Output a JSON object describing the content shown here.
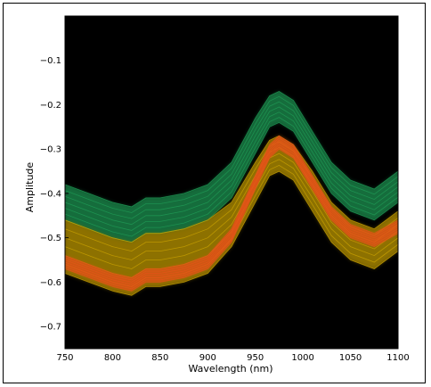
{
  "chart_data": {
    "type": "line",
    "title": "",
    "xlabel": "Wavelength (nm)",
    "ylabel": "Amplitude",
    "xlim": [
      750,
      1100
    ],
    "ylim": [
      -0.75,
      0.0
    ],
    "x_ticks": [
      750,
      800,
      850,
      900,
      950,
      1000,
      1050,
      1100
    ],
    "y_ticks": [
      -0.7,
      -0.6,
      -0.5,
      -0.4,
      -0.3,
      -0.2,
      -0.1
    ],
    "x_tick_labels": [
      "750",
      "800",
      "850",
      "900",
      "950",
      "1000",
      "1050",
      "1100"
    ],
    "y_tick_labels": [
      "−0.7",
      "−0.6",
      "−0.5",
      "−0.4",
      "−0.3",
      "−0.2",
      "−0.1"
    ],
    "grid": false,
    "background": "#000000",
    "series": [
      {
        "color": "#1f9a55",
        "x": [
          750,
          775,
          800,
          820,
          835,
          850,
          875,
          900,
          925,
          950,
          965,
          975,
          990,
          1010,
          1030,
          1050,
          1075,
          1100
        ],
        "y_upper": [
          -0.38,
          -0.4,
          -0.42,
          -0.43,
          -0.41,
          -0.41,
          -0.4,
          -0.38,
          -0.33,
          -0.23,
          -0.18,
          -0.17,
          -0.19,
          -0.26,
          -0.33,
          -0.37,
          -0.39,
          -0.35
        ],
        "y_lower": [
          -0.46,
          -0.48,
          -0.5,
          -0.51,
          -0.49,
          -0.49,
          -0.48,
          -0.46,
          -0.41,
          -0.31,
          -0.25,
          -0.24,
          -0.26,
          -0.33,
          -0.4,
          -0.44,
          -0.46,
          -0.42
        ]
      },
      {
        "color": "#c8a000",
        "x": [
          750,
          775,
          800,
          820,
          835,
          850,
          875,
          900,
          925,
          950,
          965,
          975,
          990,
          1010,
          1030,
          1050,
          1075,
          1100
        ],
        "y_upper": [
          -0.46,
          -0.48,
          -0.5,
          -0.51,
          -0.49,
          -0.49,
          -0.48,
          -0.46,
          -0.42,
          -0.33,
          -0.28,
          -0.27,
          -0.29,
          -0.35,
          -0.42,
          -0.46,
          -0.48,
          -0.44
        ],
        "y_lower": [
          -0.58,
          -0.6,
          -0.62,
          -0.63,
          -0.61,
          -0.61,
          -0.6,
          -0.58,
          -0.52,
          -0.42,
          -0.36,
          -0.35,
          -0.37,
          -0.44,
          -0.51,
          -0.55,
          -0.57,
          -0.53
        ]
      },
      {
        "color": "#e8501a",
        "x": [
          750,
          775,
          800,
          820,
          835,
          850,
          875,
          900,
          925,
          950,
          965,
          975,
          990,
          1010,
          1030,
          1050,
          1075,
          1100
        ],
        "y_upper": [
          -0.54,
          -0.56,
          -0.58,
          -0.59,
          -0.57,
          -0.57,
          -0.56,
          -0.54,
          -0.48,
          -0.36,
          -0.29,
          -0.27,
          -0.29,
          -0.36,
          -0.43,
          -0.47,
          -0.49,
          -0.46
        ],
        "y_lower": [
          -0.57,
          -0.59,
          -0.61,
          -0.62,
          -0.6,
          -0.6,
          -0.59,
          -0.57,
          -0.51,
          -0.39,
          -0.32,
          -0.3,
          -0.32,
          -0.39,
          -0.46,
          -0.5,
          -0.52,
          -0.49
        ]
      }
    ]
  }
}
